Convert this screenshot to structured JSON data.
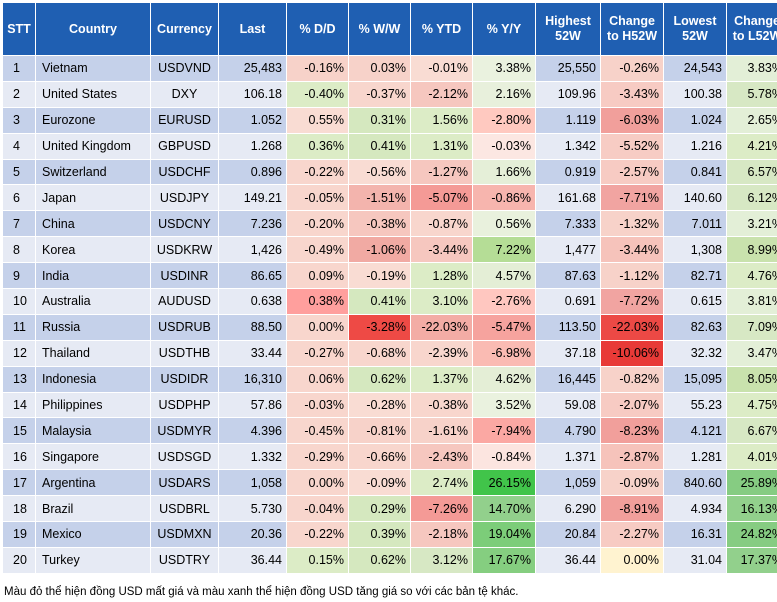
{
  "chart_data": {
    "type": "table",
    "title": "",
    "columns": [
      "STT",
      "Country",
      "Currency",
      "Last",
      "% D/D",
      "% W/W",
      "% YTD",
      "% Y/Y",
      "Highest 52W",
      "Change to H52W",
      "Lowest 52W",
      "Change to L52W"
    ],
    "rows": [
      [
        "1",
        "Vietnam",
        "USDVND",
        "25,483",
        "-0.16%",
        "0.03%",
        "-0.01%",
        "3.38%",
        "25,550",
        "-0.26%",
        "24,543",
        "3.83%"
      ],
      [
        "2",
        "United States",
        "DXY",
        "106.18",
        "-0.40%",
        "-0.37%",
        "-2.12%",
        "2.16%",
        "109.96",
        "-3.43%",
        "100.38",
        "5.78%"
      ],
      [
        "3",
        "Eurozone",
        "EURUSD",
        "1.052",
        "0.55%",
        "0.31%",
        "1.56%",
        "-2.80%",
        "1.119",
        "-6.03%",
        "1.024",
        "2.65%"
      ],
      [
        "4",
        "United Kingdom",
        "GBPUSD",
        "1.268",
        "0.36%",
        "0.41%",
        "1.31%",
        "-0.03%",
        "1.342",
        "-5.52%",
        "1.216",
        "4.21%"
      ],
      [
        "5",
        "Switzerland",
        "USDCHF",
        "0.896",
        "-0.22%",
        "-0.56%",
        "-1.27%",
        "1.66%",
        "0.919",
        "-2.57%",
        "0.841",
        "6.57%"
      ],
      [
        "6",
        "Japan",
        "USDJPY",
        "149.21",
        "-0.05%",
        "-1.51%",
        "-5.07%",
        "-0.86%",
        "161.68",
        "-7.71%",
        "140.60",
        "6.12%"
      ],
      [
        "7",
        "China",
        "USDCNY",
        "7.236",
        "-0.20%",
        "-0.38%",
        "-0.87%",
        "0.56%",
        "7.333",
        "-1.32%",
        "7.011",
        "3.21%"
      ],
      [
        "8",
        "Korea",
        "USDKRW",
        "1,426",
        "-0.49%",
        "-1.06%",
        "-3.44%",
        "7.22%",
        "1,477",
        "-3.44%",
        "1,308",
        "8.99%"
      ],
      [
        "9",
        "India",
        "USDINR",
        "86.65",
        "0.09%",
        "-0.19%",
        "1.28%",
        "4.57%",
        "87.63",
        "-1.12%",
        "82.71",
        "4.76%"
      ],
      [
        "10",
        "Australia",
        "AUDUSD",
        "0.638",
        "0.38%",
        "0.41%",
        "3.10%",
        "-2.76%",
        "0.691",
        "-7.72%",
        "0.615",
        "3.81%"
      ],
      [
        "11",
        "Russia",
        "USDRUB",
        "88.50",
        "0.00%",
        "-3.28%",
        "-22.03%",
        "-5.47%",
        "113.50",
        "-22.03%",
        "82.63",
        "7.09%"
      ],
      [
        "12",
        "Thailand",
        "USDTHB",
        "33.44",
        "-0.27%",
        "-0.68%",
        "-2.39%",
        "-6.98%",
        "37.18",
        "-10.06%",
        "32.32",
        "3.47%"
      ],
      [
        "13",
        "Indonesia",
        "USDIDR",
        "16,310",
        "0.06%",
        "0.62%",
        "1.37%",
        "4.62%",
        "16,445",
        "-0.82%",
        "15,095",
        "8.05%"
      ],
      [
        "14",
        "Philippines",
        "USDPHP",
        "57.86",
        "-0.03%",
        "-0.28%",
        "-0.38%",
        "3.52%",
        "59.08",
        "-2.07%",
        "55.23",
        "4.75%"
      ],
      [
        "15",
        "Malaysia",
        "USDMYR",
        "4.396",
        "-0.45%",
        "-0.81%",
        "-1.61%",
        "-7.94%",
        "4.790",
        "-8.23%",
        "4.121",
        "6.67%"
      ],
      [
        "16",
        "Singapore",
        "USDSGD",
        "1.332",
        "-0.29%",
        "-0.66%",
        "-2.43%",
        "-0.84%",
        "1.371",
        "-2.87%",
        "1.281",
        "4.01%"
      ],
      [
        "17",
        "Argentina",
        "USDARS",
        "1,058",
        "0.00%",
        "-0.09%",
        "2.74%",
        "26.15%",
        "1,059",
        "-0.09%",
        "840.60",
        "25.89%"
      ],
      [
        "18",
        "Brazil",
        "USDBRL",
        "5.730",
        "-0.04%",
        "0.29%",
        "-7.26%",
        "14.70%",
        "6.290",
        "-8.91%",
        "4.934",
        "16.13%"
      ],
      [
        "19",
        "Mexico",
        "USDMXN",
        "20.36",
        "-0.22%",
        "0.39%",
        "-2.18%",
        "19.04%",
        "20.84",
        "-2.27%",
        "16.31",
        "24.82%"
      ],
      [
        "20",
        "Turkey",
        "USDTRY",
        "36.44",
        "0.15%",
        "0.62%",
        "3.12%",
        "17.67%",
        "36.44",
        "0.00%",
        "31.04",
        "17.37%"
      ]
    ],
    "cell_colors": {
      "4": [
        "#f7d2c9",
        "#dcecc6",
        "#f9dcd3",
        "#dcecc6",
        "#f8d6cd",
        "#f8d6cd",
        "#f8d6cd",
        "#f8d6cd",
        "#f8d6cd",
        "#ff9f9d",
        "#f8d6cd",
        "#f8d6cd",
        "#f8d6cd",
        "#f8d6cd",
        "#f8d6cd",
        "#f8d6cd",
        "#f8d6cd",
        "#f8d6cd",
        "#f8d6cd",
        "#dcecc6"
      ],
      "5": [
        "#f7d2c9",
        "#f8d6cd",
        "#d5e8bf",
        "#d5e8bf",
        "#f9dcd3",
        "#f3b4ad",
        "#f6c7bf",
        "#f1aaa3",
        "#f9dcd3",
        "#d5e8bf",
        "#ee4a45",
        "#f8d6cd",
        "#d5e8bf",
        "#f9dcd3",
        "#f7d2c9",
        "#f8d6cd",
        "#f9dcd3",
        "#d5e8bf",
        "#d5e8bf",
        "#d5e8bf"
      ],
      "6": [
        "#f9dcd3",
        "#f6c7bf",
        "#dcecc6",
        "#dcecc6",
        "#f6c7bf",
        "#f49a96",
        "#f8d6cd",
        "#f6c7bf",
        "#dcecc6",
        "#dcecc6",
        "#f3aca5",
        "#f8d6cd",
        "#dcecc6",
        "#f8d6cd",
        "#f7d2c9",
        "#f6c7bf",
        "#dcecc6",
        "#f49a96",
        "#f6c7bf",
        "#d7e8c4"
      ],
      "7": [
        "#eaf2df",
        "#e8f0dc",
        "#ffc9c0",
        "#fce7e2",
        "#e5efd8",
        "#f7b5ae",
        "#e9f1dd",
        "#b5dd96",
        "#e4eed6",
        "#ffc7c0",
        "#f6a39e",
        "#fabbb3",
        "#e4eed6",
        "#eaf2df",
        "#fba8a3",
        "#fce5e0",
        "#41c44a",
        "#92d08c",
        "#7ccd79",
        "#85ce80"
      ],
      "9": [
        "#f7d2c9",
        "#f7cbc3",
        "#f19f9b",
        "#f7ccc4",
        "#f7cbc3",
        "#f1a4a1",
        "#f7d2c9",
        "#f6c3bb",
        "#f7d2c9",
        "#f1a4a1",
        "#ec4945",
        "#e83a37",
        "#f7d2c9",
        "#f7cbc3",
        "#f19f9b",
        "#f6c3bb",
        "#f7d2c9",
        "#f19f9b",
        "#f7cbc3",
        "#fff3d0"
      ],
      "11": [
        "#e3efd7",
        "#d7e8c4",
        "#e3efd7",
        "#dcecc6",
        "#d7e8c4",
        "#d7e8c4",
        "#e3efd7",
        "#c9e2ad",
        "#dcecc6",
        "#e3efd7",
        "#d7e8c4",
        "#e3efd7",
        "#c9e2ad",
        "#dcecc6",
        "#d7e8c4",
        "#dcecc6",
        "#86cc82",
        "#92d08c",
        "#86cc82",
        "#92d08c"
      ]
    }
  },
  "note": "Màu đỏ thể hiện đồng USD mất giá và màu xanh thể hiện đồng USD tăng giá so với các bản tệ khác."
}
